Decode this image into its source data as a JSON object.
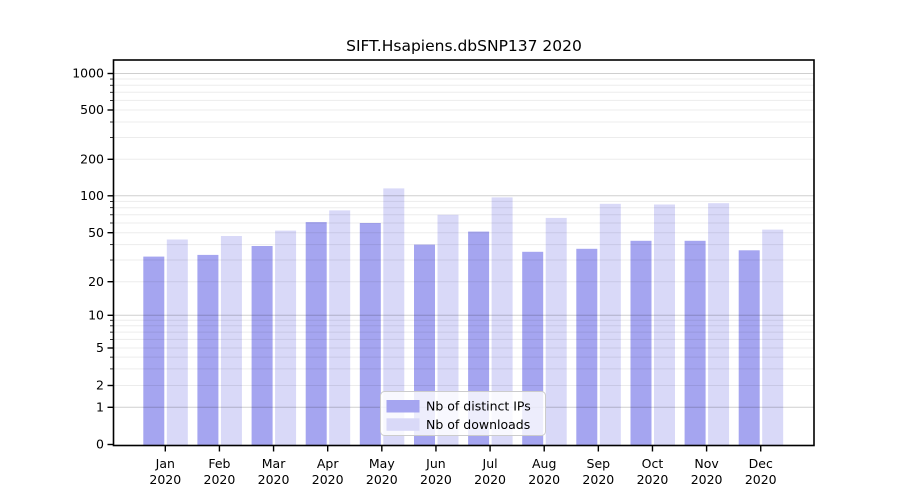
{
  "chart_data": {
    "type": "bar",
    "title": "SIFT.Hsapiens.dbSNP137 2020",
    "year": "2020",
    "categories": [
      "Jan",
      "Feb",
      "Mar",
      "Apr",
      "May",
      "Jun",
      "Jul",
      "Aug",
      "Sep",
      "Oct",
      "Nov",
      "Dec"
    ],
    "series": [
      {
        "name": "Nb of distinct IPs",
        "color": "#a5a5f0",
        "values": [
          32,
          33,
          39,
          61,
          60,
          40,
          51,
          35,
          37,
          43,
          43,
          36
        ]
      },
      {
        "name": "Nb of downloads",
        "color": "#d9d9f8",
        "values": [
          44,
          47,
          52,
          76,
          115,
          70,
          97,
          66,
          86,
          85,
          87,
          53
        ]
      }
    ],
    "xlabel": "",
    "ylabel": "",
    "yscale": "log-like",
    "ylim": [
      0,
      1000
    ],
    "yticks": [
      0,
      1,
      2,
      5,
      10,
      20,
      50,
      100,
      200,
      500,
      1000
    ],
    "grid": {
      "major_values": [
        1,
        10,
        100,
        1000
      ],
      "minor": "on",
      "major_color": "#cfcfcf",
      "minor_color": "#ececec"
    },
    "legend": {
      "position": "lower center",
      "entries": [
        "Nb of distinct IPs",
        "Nb of downloads"
      ]
    },
    "axis_color": "#000000",
    "background_color": "#ffffff"
  }
}
